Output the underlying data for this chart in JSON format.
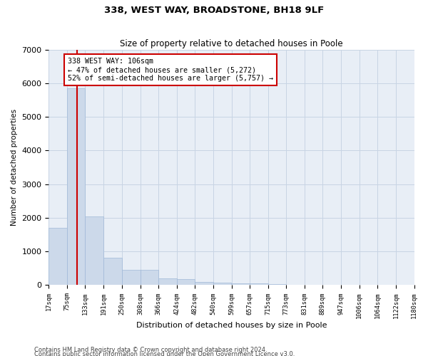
{
  "title1": "338, WEST WAY, BROADSTONE, BH18 9LF",
  "title2": "Size of property relative to detached houses in Poole",
  "xlabel": "Distribution of detached houses by size in Poole",
  "ylabel": "Number of detached properties",
  "footnote1": "Contains HM Land Registry data © Crown copyright and database right 2024.",
  "footnote2": "Contains public sector information licensed under the Open Government Licence v3.0.",
  "annotation_line1": "338 WEST WAY: 106sqm",
  "annotation_line2": "← 47% of detached houses are smaller (5,272)",
  "annotation_line3": "52% of semi-detached houses are larger (5,757) →",
  "property_size": 106,
  "bar_color": "#ccd9ea",
  "bar_edge_color": "#a0b8d8",
  "red_line_color": "#cc0000",
  "annotation_box_edge": "#cc0000",
  "grid_color": "#c8d4e4",
  "bg_color": "#e8eef6",
  "bins": [
    17,
    75,
    133,
    191,
    250,
    308,
    366,
    424,
    482,
    540,
    599,
    657,
    715,
    773,
    831,
    889,
    947,
    1006,
    1064,
    1122,
    1180
  ],
  "bin_labels": [
    "17sqm",
    "75sqm",
    "133sqm",
    "191sqm",
    "250sqm",
    "308sqm",
    "366sqm",
    "424sqm",
    "482sqm",
    "540sqm",
    "599sqm",
    "657sqm",
    "715sqm",
    "773sqm",
    "831sqm",
    "889sqm",
    "947sqm",
    "1006sqm",
    "1064sqm",
    "1122sqm",
    "1180sqm"
  ],
  "bar_heights": [
    1700,
    5850,
    2050,
    820,
    450,
    450,
    200,
    175,
    100,
    80,
    60,
    45,
    40,
    0,
    0,
    0,
    0,
    0,
    0,
    0
  ],
  "ylim": [
    0,
    7000
  ],
  "yticks": [
    0,
    1000,
    2000,
    3000,
    4000,
    5000,
    6000,
    7000
  ]
}
